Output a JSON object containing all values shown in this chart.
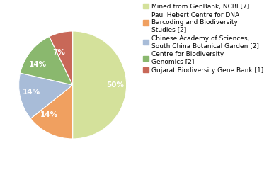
{
  "slices": [
    7,
    2,
    2,
    2,
    1
  ],
  "pct_labels": [
    "50%",
    "14%",
    "14%",
    "14%",
    "7%"
  ],
  "colors": [
    "#d4e19b",
    "#f0a060",
    "#a8bcd8",
    "#8ab86e",
    "#c86858"
  ],
  "legend_labels": [
    "Mined from GenBank, NCBI [7]",
    "Paul Hebert Centre for DNA\nBarcoding and Biodiversity\nStudies [2]",
    "Chinese Academy of Sciences,\nSouth China Botanical Garden [2]",
    "Centre for Biodiversity\nGenomics [2]",
    "Gujarat Biodiversity Gene Bank [1]"
  ],
  "startangle": 90,
  "background_color": "#ffffff",
  "label_fontsize": 7.5,
  "legend_fontsize": 6.5
}
